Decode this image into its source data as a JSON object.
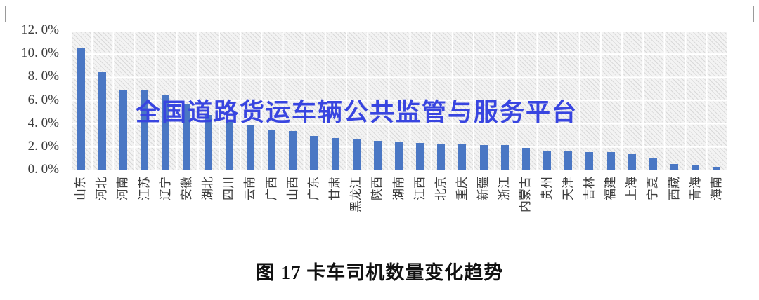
{
  "page": {
    "watermark": "全国道路货运车辆公共监管与服务平台",
    "caption": "图 17 卡车司机数量变化趋势"
  },
  "colors": {
    "bar": "#4a77c4",
    "watermark": "#3845e0",
    "axis_text": "#3d3d3d"
  },
  "chart_data": {
    "type": "bar",
    "title": "图 17 卡车司机数量变化趋势",
    "xlabel": "",
    "ylabel": "",
    "unit": "%",
    "ylim": [
      0,
      12
    ],
    "ytick_step": 2,
    "ytick_labels": [
      "12. 0%",
      "10. 0%",
      "8. 0%",
      "6. 0%",
      "4. 0%",
      "2. 0%",
      "0. 0%"
    ],
    "grid": true,
    "legend": "none",
    "categories": [
      "山东",
      "河北",
      "河南",
      "江苏",
      "辽宁",
      "安徽",
      "湖北",
      "四川",
      "云南",
      "广西",
      "山西",
      "广东",
      "甘肃",
      "黑龙江",
      "陕西",
      "湖南",
      "江西",
      "北京",
      "重庆",
      "新疆",
      "浙江",
      "内蒙古",
      "贵州",
      "天津",
      "吉林",
      "福建",
      "上海",
      "宁夏",
      "西藏",
      "青海",
      "海南"
    ],
    "values": [
      10.5,
      8.4,
      6.9,
      6.8,
      6.4,
      5.6,
      4.7,
      4.1,
      3.8,
      3.4,
      3.3,
      2.9,
      2.7,
      2.6,
      2.5,
      2.4,
      2.3,
      2.2,
      2.2,
      2.1,
      2.1,
      1.9,
      1.6,
      1.6,
      1.5,
      1.5,
      1.4,
      1.0,
      0.5,
      0.4,
      0.25
    ]
  }
}
